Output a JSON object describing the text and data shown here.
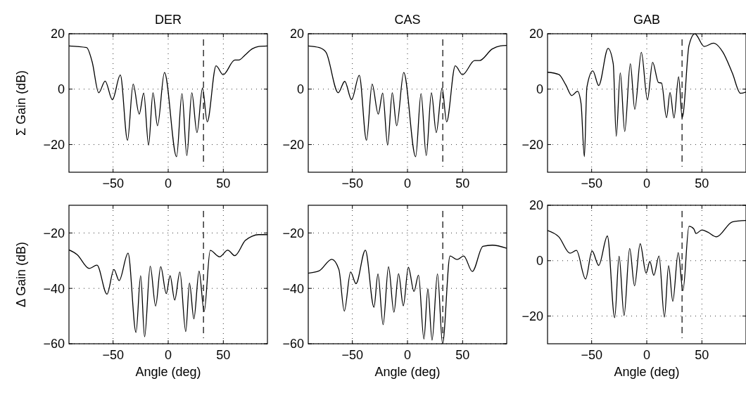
{
  "chart_data": [
    {
      "type": "line",
      "title": "DER",
      "ylabel": "Σ Gain (dB)",
      "xlim": [
        -90,
        90
      ],
      "ylim": [
        -30,
        20
      ],
      "xticks": [
        -50,
        0,
        50
      ],
      "yticks": [
        -20,
        0,
        20
      ],
      "grid": true,
      "line_style": "solid",
      "marker": "none",
      "ref_lines": [
        {
          "axis": "x",
          "value": 32,
          "line_style": "dashed",
          "color": "#000000"
        }
      ],
      "series": [
        {
          "color": "#000000",
          "x": [
            -90,
            -74,
            -69,
            -63,
            -57.2,
            -50.6,
            -43.4,
            -36.9,
            -31.8,
            -26.3,
            -22.2,
            -17.8,
            -13.8,
            -9.7,
            -3.4,
            7.6,
            12.5,
            16.9,
            21.4,
            26.1,
            31.1,
            35.4,
            43.4,
            49.8,
            60.4,
            64,
            69.9,
            76,
            82,
            90
          ],
          "values": [
            15.6,
            15,
            9.9,
            -1.3,
            2.9,
            -3.8,
            5.1,
            -18.5,
            1.8,
            -9,
            -1.4,
            -20.2,
            -1.3,
            -13.2,
            6,
            -24.4,
            -1.6,
            -24,
            -1.3,
            -15.7,
            0.4,
            -11.8,
            8.4,
            5.2,
            10.5,
            10.5,
            12.4,
            14.5,
            15.4,
            15.6
          ]
        }
      ]
    },
    {
      "type": "line",
      "title": "CAS",
      "xlim": [
        -90,
        90
      ],
      "ylim": [
        -30,
        20
      ],
      "xticks": [
        -50,
        0,
        50
      ],
      "yticks": [
        -20,
        0,
        20
      ],
      "grid": true,
      "line_style": "solid",
      "marker": "none",
      "ref_lines": [
        {
          "axis": "x",
          "value": 32,
          "line_style": "dashed",
          "color": "#000000"
        }
      ],
      "series": [
        {
          "color": "#000000",
          "x": [
            -90,
            -80,
            -73.9,
            -62.8,
            -56.9,
            -50.7,
            -43.7,
            -37.2,
            -32.1,
            -26.5,
            -22.5,
            -18,
            -13.8,
            -9.8,
            -3.4,
            7.4,
            12.3,
            17,
            21.7,
            26.1,
            31.4,
            35.5,
            43.3,
            49.9,
            60.9,
            65.2,
            76.9,
            84,
            90
          ],
          "values": [
            15.6,
            15,
            13.3,
            -1.3,
            2.8,
            -3.8,
            5,
            -18.5,
            1.8,
            -9,
            -1.4,
            -20.2,
            -1.3,
            -13.2,
            6,
            -24.4,
            -1.6,
            -24,
            -1.3,
            -15.7,
            0.4,
            -11.8,
            8.4,
            5.2,
            10.3,
            10.3,
            14.5,
            15.6,
            15.8
          ]
        }
      ]
    },
    {
      "type": "line",
      "title": "GAB",
      "xlim": [
        -90,
        90
      ],
      "ylim": [
        -30,
        20
      ],
      "xticks": [
        -50,
        0,
        50
      ],
      "yticks": [
        -20,
        0,
        20
      ],
      "grid": true,
      "line_style": "solid",
      "marker": "none",
      "ref_lines": [
        {
          "axis": "x",
          "value": 32,
          "line_style": "dashed",
          "color": "#000000"
        }
      ],
      "series": [
        {
          "color": "#000000",
          "x": [
            -90,
            -79.8,
            -73.4,
            -68.1,
            -62.8,
            -59.6,
            -56.6,
            -54.3,
            -48.9,
            -43.6,
            -35.1,
            -30.4,
            -27.7,
            -24,
            -20,
            -14.9,
            -10.9,
            -4.9,
            0.6,
            5.3,
            10.6,
            13.4,
            17.9,
            21.1,
            24.7,
            28.9,
            32.1,
            33,
            38.3,
            43.6,
            52.1,
            60.6,
            69.1,
            77.7,
            85,
            90
          ],
          "values": [
            6.1,
            5.3,
            1.5,
            -2.3,
            -0.8,
            -5.2,
            -24.4,
            0.7,
            6.6,
            1.3,
            14.7,
            9.1,
            -17,
            5.9,
            -15.3,
            9.2,
            -7.3,
            13.3,
            -3.9,
            9.7,
            2.4,
            2.2,
            -10.3,
            -1.2,
            -10.4,
            4.5,
            -10.3,
            -9,
            15.8,
            20,
            15.4,
            16.6,
            13.3,
            5.7,
            -1.5,
            -1
          ]
        }
      ]
    },
    {
      "type": "line",
      "ylabel": "Δ Gain (dB)",
      "xlabel": "Angle (deg)",
      "xlim": [
        -90,
        90
      ],
      "ylim": [
        -60,
        -10
      ],
      "xticks": [
        -50,
        0,
        50
      ],
      "yticks": [
        -60,
        -40,
        -20
      ],
      "grid": true,
      "line_style": "solid",
      "marker": "none",
      "ref_lines": [
        {
          "axis": "x",
          "value": 32,
          "line_style": "dashed",
          "color": "#000000"
        }
      ],
      "series": [
        {
          "color": "#000000",
          "x": [
            -90,
            -82.6,
            -71.6,
            -64.6,
            -55.5,
            -49.2,
            -44.5,
            -36.4,
            -29.2,
            -25,
            -21.4,
            -16.3,
            -11.4,
            -6.8,
            -1.7,
            1.7,
            5.9,
            10.6,
            15.9,
            19.3,
            23.3,
            28,
            32.6,
            38.1,
            46.6,
            54,
            60.4,
            69.9,
            76,
            82,
            90
          ],
          "values": [
            -26.1,
            -27.8,
            -32.8,
            -31.6,
            -42.1,
            -33.2,
            -37.2,
            -27.3,
            -55.9,
            -35.4,
            -57.5,
            -32,
            -46.4,
            -32.2,
            -41.9,
            -35.4,
            -44.2,
            -34.1,
            -55.6,
            -38.1,
            -51,
            -33.8,
            -48.4,
            -26.3,
            -28.6,
            -26.2,
            -28.2,
            -22.7,
            -21.2,
            -20.6,
            -20.6
          ]
        }
      ]
    },
    {
      "type": "line",
      "xlabel": "Angle (deg)",
      "xlim": [
        -90,
        90
      ],
      "ylim": [
        -60,
        -10
      ],
      "xticks": [
        -50,
        0,
        50
      ],
      "yticks": [
        -60,
        -40,
        -20
      ],
      "grid": true,
      "line_style": "solid",
      "marker": "none",
      "ref_lines": [
        {
          "axis": "x",
          "value": 32,
          "line_style": "dashed",
          "color": "#000000"
        }
      ],
      "series": [
        {
          "color": "#000000",
          "x": [
            -90,
            -80.3,
            -68.6,
            -62.2,
            -57.3,
            -51.6,
            -46.7,
            -38.2,
            -30.4,
            -26.8,
            -22.1,
            -17.2,
            -12.3,
            -8.1,
            -3.8,
            0.8,
            5.9,
            10,
            14.9,
            18.5,
            22.3,
            27.2,
            31.8,
            38.6,
            45,
            51,
            58.8,
            68.4,
            76.9,
            90
          ],
          "values": [
            -34.5,
            -33.7,
            -29.5,
            -33.2,
            -48.2,
            -34.1,
            -38.3,
            -26.2,
            -46.8,
            -34.8,
            -53.1,
            -32.2,
            -48.6,
            -34.7,
            -46.3,
            -32.4,
            -41.1,
            -35.2,
            -58.3,
            -40.2,
            -58.7,
            -34.8,
            -60,
            -28.3,
            -29.6,
            -28.3,
            -33.9,
            -24.8,
            -24.4,
            -25.5
          ]
        }
      ]
    },
    {
      "type": "line",
      "xlabel": "Angle (deg)",
      "xlim": [
        -90,
        90
      ],
      "ylim": [
        -30,
        20
      ],
      "xticks": [
        -50,
        0,
        50
      ],
      "yticks": [
        -20,
        0,
        20
      ],
      "grid": true,
      "line_style": "solid",
      "marker": "none",
      "ref_lines": [
        {
          "axis": "x",
          "value": 32,
          "line_style": "dashed",
          "color": "#000000"
        }
      ],
      "series": [
        {
          "color": "#000000",
          "x": [
            -90,
            -79.8,
            -69.6,
            -63.8,
            -55.5,
            -49.6,
            -43.6,
            -35.7,
            -29.1,
            -25.1,
            -20.6,
            -15.5,
            -11.1,
            -6,
            -0.6,
            2.8,
            6.4,
            11.1,
            16,
            19.8,
            23.6,
            28.5,
            32.8,
            38.3,
            42.6,
            44.7,
            50,
            55.3,
            63.2,
            77.7,
            90
          ],
          "values": [
            10.9,
            8.6,
            2.7,
            3.7,
            -6.6,
            3.5,
            -1.7,
            8.9,
            -20.6,
            1.6,
            -19.8,
            4.4,
            -9.1,
            6.1,
            -4.5,
            -0.3,
            -5.3,
            1.7,
            -20.4,
            -1.8,
            -14.7,
            2.9,
            -10.8,
            12.4,
            11.5,
            9.8,
            11.1,
            10.3,
            8.6,
            14,
            14.5
          ]
        }
      ]
    }
  ]
}
